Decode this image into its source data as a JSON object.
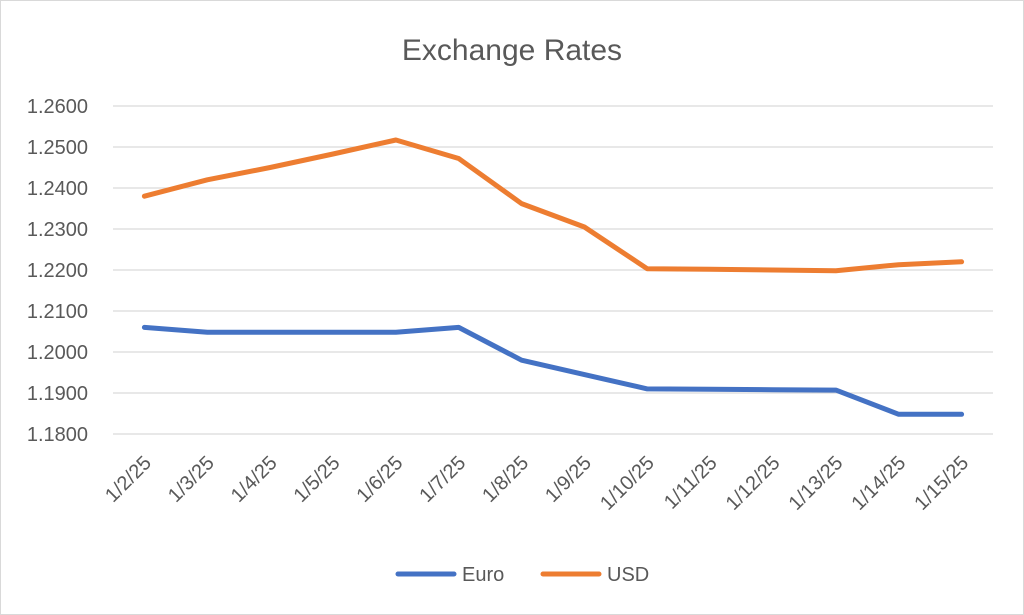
{
  "chart_data": {
    "type": "line",
    "title": "Exchange Rates",
    "xlabel": "",
    "ylabel": "",
    "categories": [
      "1/2/25",
      "1/3/25",
      "1/4/25",
      "1/5/25",
      "1/6/25",
      "1/7/25",
      "1/8/25",
      "1/9/25",
      "1/10/25",
      "1/11/25",
      "1/12/25",
      "1/13/25",
      "1/14/25",
      "1/15/25"
    ],
    "ylim": [
      1.18,
      1.26
    ],
    "yticks": [
      "1.1800",
      "1.1900",
      "1.2000",
      "1.2100",
      "1.2200",
      "1.2300",
      "1.2400",
      "1.2500",
      "1.2600"
    ],
    "grid": true,
    "legend_position": "bottom",
    "series": [
      {
        "name": "Euro",
        "color": "#4472C4",
        "values": [
          1.206,
          1.2048,
          1.2048,
          1.2048,
          1.2048,
          1.206,
          1.198,
          1.1945,
          1.191,
          1.1909,
          1.1908,
          1.1907,
          1.1848,
          1.1848
        ]
      },
      {
        "name": "USD",
        "color": "#ED7D31",
        "values": [
          1.238,
          1.242,
          1.245,
          1.2483,
          1.2517,
          1.2472,
          1.2362,
          1.2305,
          1.2203,
          1.2202,
          1.22,
          1.2198,
          1.2213,
          1.222
        ]
      }
    ]
  }
}
